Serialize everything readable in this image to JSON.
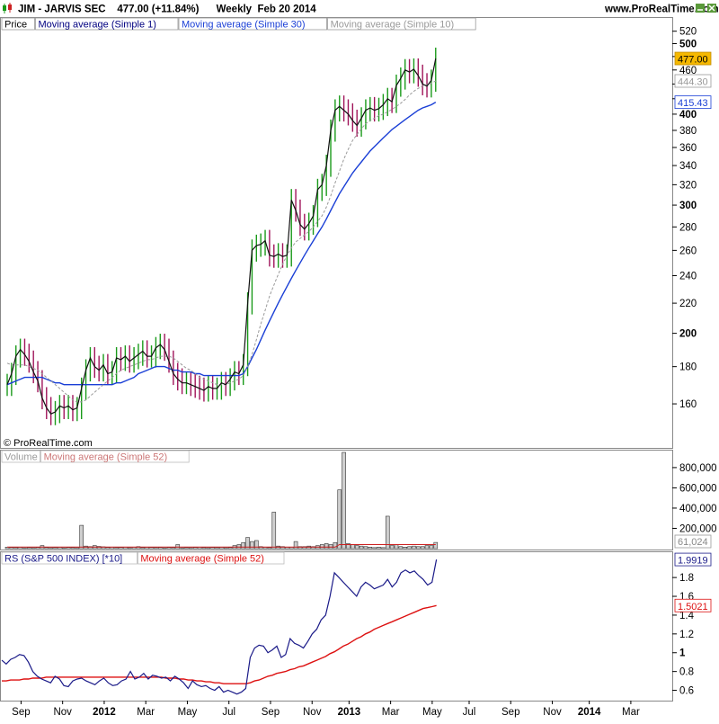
{
  "header": {
    "icon": "candlestick-chart-icon",
    "title": "JIM - JARVIS SEC    477.00 (+11.84%)      Weekly  Feb 20 2014",
    "site": "www.ProRealTime.com",
    "window_buttons": [
      "minimize",
      "close"
    ]
  },
  "copyright": "© ProRealTime.com",
  "colors": {
    "price_ma1": "#111111",
    "ma30": "#1a3fd6",
    "ma10": "#9a9a9a",
    "up_bar": "#1a9a1a",
    "down_bar": "#a0145a",
    "vol_ma": "#cc2222",
    "rs": "#1a1a88",
    "rs_ma": "#dd1111"
  },
  "chart_data": [
    {
      "type": "line",
      "panel": "price",
      "legend": [
        {
          "name": "Price"
        },
        {
          "name": "Moving average (Simple 1)",
          "color": "#000080"
        },
        {
          "name": "Moving average (Simple 30)",
          "color": "#1a3fd6"
        },
        {
          "name": "Moving average (Simple 10)",
          "color": "#9a9a9a"
        }
      ],
      "scale": "log",
      "ylim": [
        140,
        530
      ],
      "y_ticks": [
        160,
        180,
        200,
        220,
        240,
        260,
        280,
        300,
        320,
        340,
        360,
        380,
        400,
        420,
        440,
        460,
        480,
        500,
        520
      ],
      "y_tick_bold": [
        200,
        300,
        400,
        500
      ],
      "y_tick_labels": [
        "160",
        "180",
        "200",
        "220",
        "240",
        "260",
        "280",
        "300",
        "320",
        "340",
        "360",
        "380",
        "400",
        "",
        "",
        "460",
        "",
        "500",
        "520"
      ],
      "last_value_labels": [
        {
          "text": "477.00",
          "value": 477,
          "style": "current"
        },
        {
          "text": "444.30",
          "value": 444.3,
          "style": "ma10"
        },
        {
          "text": "415.43",
          "value": 415.43,
          "style": "ma30"
        }
      ],
      "series": [
        {
          "name": "Moving average (Simple 1)",
          "values": [
            170,
            176,
            186,
            190,
            187,
            183,
            177,
            172,
            163,
            158,
            155,
            156,
            159,
            158,
            159,
            157,
            158,
            168,
            178,
            185,
            180,
            178,
            181,
            176,
            177,
            185,
            184,
            186,
            183,
            185,
            187,
            189,
            186,
            186,
            191,
            193,
            190,
            183,
            176,
            173,
            171,
            171,
            170,
            169,
            168,
            167,
            169,
            168,
            168,
            171,
            170,
            173,
            177,
            176,
            181,
            220,
            260,
            264,
            265,
            268,
            256,
            255,
            257,
            255,
            256,
            305,
            295,
            282,
            278,
            283,
            290,
            315,
            320,
            340,
            380,
            405,
            410,
            405,
            400,
            392,
            386,
            395,
            405,
            408,
            405,
            407,
            412,
            420,
            416,
            438,
            448,
            460,
            457,
            461,
            452,
            440,
            437,
            445,
            477
          ]
        },
        {
          "name": "Moving average (Simple 10)",
          "values": [
            182,
            181,
            181,
            181,
            181,
            180,
            179,
            178,
            176,
            174,
            172,
            170,
            168,
            166,
            164,
            162,
            161,
            161,
            162,
            164,
            166,
            168,
            170,
            172,
            174,
            176,
            178,
            179,
            180,
            181,
            182,
            183,
            184,
            184,
            185,
            186,
            186,
            186,
            185,
            183,
            181,
            179,
            178,
            176,
            174,
            173,
            172,
            171,
            170,
            170,
            170,
            171,
            172,
            173,
            175,
            180,
            187,
            196,
            206,
            215,
            225,
            233,
            241,
            249,
            256,
            262,
            267,
            270,
            273,
            276,
            280,
            285,
            290,
            298,
            309,
            322,
            334,
            347,
            358,
            368,
            375,
            382,
            388,
            392,
            395,
            398,
            400,
            403,
            406,
            410,
            414,
            419,
            425,
            430,
            434,
            437,
            439,
            441,
            444.3
          ]
        },
        {
          "name": "Moving average (Simple 30)",
          "values": [
            170,
            171,
            172,
            173,
            174,
            174,
            174,
            174,
            174,
            173,
            172,
            171,
            171,
            170,
            170,
            170,
            170,
            170,
            170,
            170,
            170,
            170,
            170,
            170,
            170,
            171,
            171,
            172,
            173,
            174,
            176,
            177,
            178,
            179,
            180,
            180,
            180,
            179,
            178,
            178,
            177,
            177,
            177,
            176,
            176,
            175,
            175,
            175,
            175,
            175,
            175,
            175,
            175,
            175,
            176,
            180,
            185,
            190,
            196,
            202,
            208,
            214,
            220,
            226,
            232,
            238,
            244,
            250,
            256,
            262,
            268,
            274,
            280,
            287,
            295,
            303,
            311,
            318,
            325,
            332,
            338,
            344,
            350,
            356,
            361,
            366,
            371,
            376,
            381,
            385,
            389,
            393,
            397,
            401,
            405,
            408,
            410,
            412,
            415.43
          ]
        }
      ]
    },
    {
      "type": "bar",
      "panel": "volume",
      "legend": [
        {
          "name": "Volume",
          "color": "#9a9a9a"
        },
        {
          "name": "Moving average (Simple 52)",
          "color": "#cc7777"
        }
      ],
      "ylim": [
        0,
        950000
      ],
      "y_ticks": [
        200000,
        400000,
        600000,
        800000
      ],
      "y_tick_labels": [
        "200,000",
        "400,000",
        "600,000",
        "800,000"
      ],
      "last_value_label": "61,024",
      "values": [
        15000,
        12000,
        10000,
        14000,
        8000,
        10000,
        9000,
        12000,
        30000,
        11000,
        9000,
        10000,
        14000,
        8000,
        12000,
        10000,
        9000,
        230000,
        25000,
        20000,
        30000,
        22000,
        18000,
        12000,
        15000,
        10000,
        12000,
        15000,
        9000,
        15000,
        20000,
        10000,
        14000,
        12000,
        10000,
        12000,
        8000,
        12000,
        10000,
        40000,
        8000,
        10000,
        9000,
        12000,
        15000,
        10000,
        9000,
        12000,
        10000,
        14000,
        9000,
        11000,
        30000,
        40000,
        60000,
        110000,
        70000,
        80000,
        20000,
        15000,
        10000,
        360000,
        25000,
        20000,
        15000,
        15000,
        70000,
        20000,
        20000,
        25000,
        20000,
        30000,
        40000,
        50000,
        40000,
        60000,
        580000,
        950000,
        50000,
        40000,
        30000,
        25000,
        20000,
        15000,
        10000,
        15000,
        10000,
        320000,
        30000,
        40000,
        20000,
        15000,
        20000,
        25000,
        20000,
        20000,
        30000,
        30000,
        61024
      ],
      "ma_values": [
        15000,
        15000,
        15000,
        15000,
        15000,
        15000,
        15000,
        15000,
        15000,
        15000,
        15000,
        15000,
        15000,
        15000,
        15000,
        15000,
        15000,
        15000,
        15000,
        15000,
        15000,
        15000,
        15000,
        15000,
        15000,
        15000,
        15000,
        15000,
        15000,
        15000,
        15000,
        15000,
        15000,
        15000,
        15000,
        15000,
        15000,
        15000,
        15000,
        15000,
        15000,
        15000,
        15000,
        15000,
        15000,
        15000,
        15000,
        15000,
        15000,
        15000,
        15000,
        15000,
        15000,
        15000,
        15000,
        15000,
        15000,
        15000,
        15000,
        15000,
        15000,
        15000,
        15000,
        15000,
        15000,
        15000,
        15000,
        15000,
        15000,
        15000,
        15000,
        15000,
        15000,
        15000,
        15000,
        15000,
        40000,
        40000,
        40000,
        40000,
        40000,
        40000,
        40000,
        40000,
        40000,
        40000,
        40000,
        40000,
        40000,
        40000,
        40000,
        40000,
        40000,
        40000,
        40000,
        40000,
        40000,
        40000,
        40000
      ]
    },
    {
      "type": "line",
      "panel": "rs",
      "legend": [
        {
          "name": "RS (S&P 500 INDEX) [*10]",
          "color": "#1a1a88"
        },
        {
          "name": "Moving average (Simple 52)",
          "color": "#dd1111"
        }
      ],
      "ylim": [
        0.5,
        2.05
      ],
      "y_ticks": [
        0.6,
        0.8,
        1,
        1.2,
        1.4,
        1.6,
        1.8
      ],
      "y_tick_labels": [
        "0.6",
        "0.8",
        "1",
        "1.2",
        "1.4",
        "1.6",
        "1.8"
      ],
      "y_tick_bold": [
        1
      ],
      "last_value_labels": [
        {
          "text": "1.9919",
          "value": 1.9919,
          "style": "rs"
        },
        {
          "text": "1.5021",
          "value": 1.5021,
          "style": "rsma"
        }
      ],
      "series": [
        {
          "name": "RS (S&P 500 INDEX) [*10]",
          "values": [
            0.92,
            0.88,
            0.93,
            0.95,
            0.98,
            0.97,
            0.9,
            0.8,
            0.75,
            0.72,
            0.7,
            0.68,
            0.75,
            0.72,
            0.65,
            0.64,
            0.7,
            0.72,
            0.73,
            0.7,
            0.68,
            0.66,
            0.7,
            0.73,
            0.68,
            0.65,
            0.66,
            0.7,
            0.72,
            0.8,
            0.72,
            0.74,
            0.78,
            0.72,
            0.76,
            0.75,
            0.73,
            0.74,
            0.7,
            0.75,
            0.72,
            0.68,
            0.62,
            0.7,
            0.66,
            0.64,
            0.65,
            0.62,
            0.6,
            0.64,
            0.58,
            0.6,
            0.58,
            0.56,
            0.58,
            0.62,
            0.95,
            1.05,
            1.08,
            1.07,
            1.0,
            1.03,
            1.07,
            0.95,
            0.98,
            1.15,
            1.1,
            1.08,
            1.05,
            1.12,
            1.2,
            1.25,
            1.35,
            1.4,
            1.6,
            1.85,
            1.8,
            1.75,
            1.7,
            1.65,
            1.6,
            1.7,
            1.75,
            1.72,
            1.68,
            1.7,
            1.72,
            1.78,
            1.7,
            1.75,
            1.85,
            1.88,
            1.85,
            1.87,
            1.82,
            1.78,
            1.72,
            1.75,
            1.9919
          ]
        },
        {
          "name": "Moving average (Simple 52)",
          "values": [
            0.7,
            0.7,
            0.71,
            0.71,
            0.71,
            0.72,
            0.72,
            0.73,
            0.73,
            0.73,
            0.74,
            0.74,
            0.74,
            0.74,
            0.74,
            0.74,
            0.74,
            0.74,
            0.74,
            0.74,
            0.74,
            0.74,
            0.74,
            0.74,
            0.74,
            0.74,
            0.74,
            0.74,
            0.74,
            0.74,
            0.74,
            0.74,
            0.74,
            0.74,
            0.74,
            0.74,
            0.74,
            0.73,
            0.73,
            0.73,
            0.72,
            0.72,
            0.71,
            0.71,
            0.7,
            0.7,
            0.69,
            0.69,
            0.68,
            0.68,
            0.67,
            0.67,
            0.67,
            0.67,
            0.67,
            0.67,
            0.68,
            0.7,
            0.71,
            0.73,
            0.75,
            0.76,
            0.78,
            0.79,
            0.8,
            0.82,
            0.83,
            0.85,
            0.86,
            0.88,
            0.9,
            0.92,
            0.94,
            0.96,
            0.99,
            1.01,
            1.04,
            1.07,
            1.09,
            1.12,
            1.15,
            1.17,
            1.2,
            1.22,
            1.25,
            1.27,
            1.29,
            1.31,
            1.33,
            1.35,
            1.37,
            1.39,
            1.41,
            1.43,
            1.45,
            1.47,
            1.48,
            1.49,
            1.5021
          ]
        }
      ]
    }
  ],
  "x_axis": {
    "labels": [
      {
        "text": "Sep",
        "week": 3,
        "bold": false
      },
      {
        "text": "Nov",
        "week": 12,
        "bold": false
      },
      {
        "text": "2012",
        "week": 21,
        "bold": true
      },
      {
        "text": "Mar",
        "week": 30,
        "bold": false
      },
      {
        "text": "May",
        "week": 39,
        "bold": false
      },
      {
        "text": "Jul",
        "week": 48,
        "bold": false
      },
      {
        "text": "Sep",
        "week": 57,
        "bold": false
      },
      {
        "text": "Nov",
        "week": 66,
        "bold": false
      },
      {
        "text": "2013",
        "week": 74,
        "bold": true
      },
      {
        "text": "Mar",
        "week": 83,
        "bold": false
      },
      {
        "text": "May",
        "week": 92,
        "bold": false
      },
      {
        "text": "Jul",
        "week": 100,
        "bold": false
      },
      {
        "text": "Sep",
        "week": 109,
        "bold": false
      },
      {
        "text": "Nov",
        "week": 118,
        "bold": false
      },
      {
        "text": "2014",
        "week": 126,
        "bold": true
      },
      {
        "text": "Mar",
        "week": 135,
        "bold": false
      }
    ]
  }
}
